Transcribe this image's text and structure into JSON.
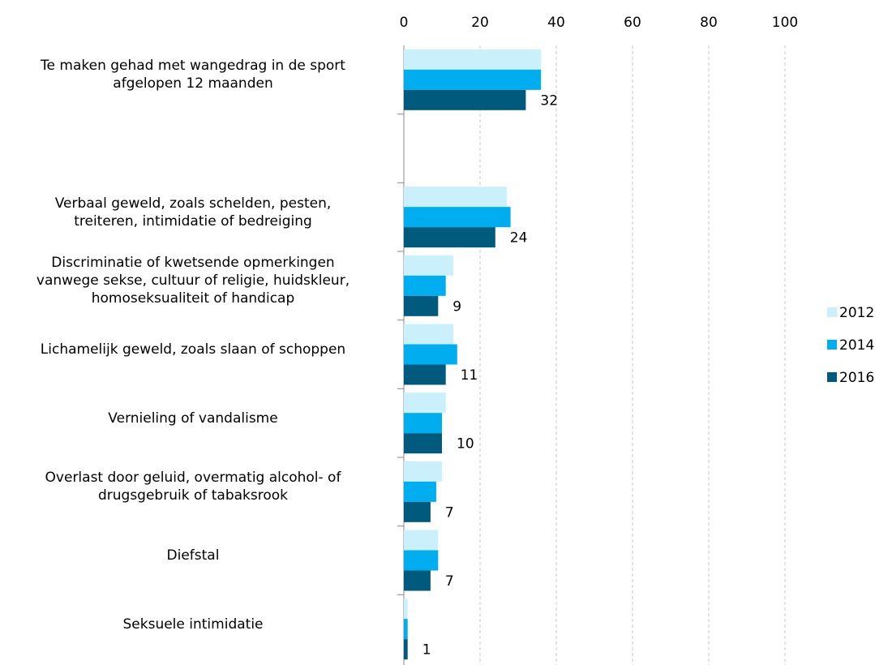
{
  "chart_data": {
    "type": "hbar",
    "categories": [
      "Te maken gehad met wangedrag in de sport\nafgelopen 12 maanden",
      null,
      "Verbaal geweld, zoals schelden, pesten,\ntreiteren, intimidatie of bedreiging",
      "Discriminatie of kwetsende opmerkingen\nvanwege sekse, cultuur of religie, huidskleur,\nhomoseksualiteit of handicap",
      "Lichamelijk geweld, zoals slaan of schoppen",
      "Vernieling of vandalisme",
      "Overlast door geluid, overmatig alcohol- of\ndrugsgebruik of tabaksrook",
      "Diefstal",
      "Seksuele intimidatie"
    ],
    "series": [
      {
        "name": "2012",
        "color": "#c9f0fb",
        "values": [
          36,
          null,
          27,
          13,
          13,
          11,
          10,
          9,
          1
        ]
      },
      {
        "name": "2014",
        "color": "#00aeef",
        "values": [
          36,
          null,
          28,
          11,
          14,
          10,
          8.5,
          9,
          1
        ]
      },
      {
        "name": "2016",
        "color": "#005a7e",
        "values": [
          32,
          null,
          24,
          9,
          11,
          10,
          7,
          7,
          1
        ],
        "data_labels": true
      }
    ],
    "xlim": [
      0,
      100
    ],
    "xticks": [
      0,
      20,
      40,
      60,
      80,
      100
    ],
    "grid": true,
    "legend": "right"
  }
}
